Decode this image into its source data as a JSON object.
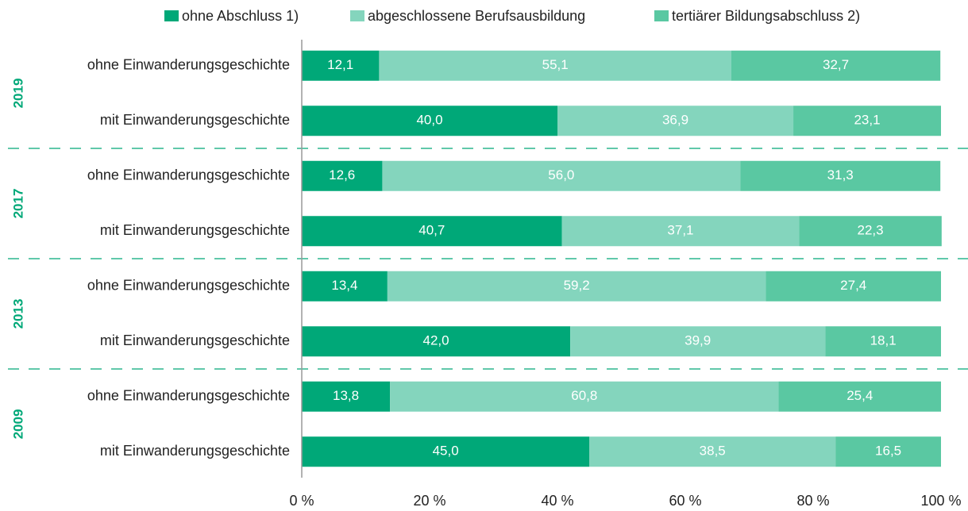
{
  "chart_data": {
    "type": "bar",
    "orientation": "horizontal",
    "stacked": true,
    "groups": [
      "2019",
      "2017",
      "2013",
      "2009"
    ],
    "categories": [
      "ohne Einwanderungsgeschichte",
      "mit Einwanderungsgeschichte",
      "ohne Einwanderungsgeschichte",
      "mit Einwanderungsgeschichte",
      "ohne Einwanderungsgeschichte",
      "mit Einwanderungsgeschichte",
      "ohne Einwanderungsgeschichte",
      "mit Einwanderungsgeschichte"
    ],
    "series": [
      {
        "name": "ohne Abschluss 1)",
        "color": "#00a878",
        "values": [
          12.1,
          40.0,
          12.6,
          40.7,
          13.4,
          42.0,
          13.8,
          45.0
        ],
        "value_labels": [
          "12,1",
          "40,0",
          "12,6",
          "40,7",
          "13,4",
          "42,0",
          "13,8",
          "45,0"
        ]
      },
      {
        "name": "abgeschlossene Berufsausbildung",
        "color": "#84d5bd",
        "values": [
          55.1,
          36.9,
          56.0,
          37.1,
          59.2,
          39.9,
          60.8,
          38.5
        ],
        "value_labels": [
          "55,1",
          "36,9",
          "56,0",
          "37,1",
          "59,2",
          "39,9",
          "60,8",
          "38,5"
        ]
      },
      {
        "name": "tertiärer Bildungsabschluss 2)",
        "color": "#5ac8a2",
        "values": [
          32.7,
          23.1,
          31.3,
          22.3,
          27.4,
          18.1,
          25.4,
          16.5
        ],
        "value_labels": [
          "32,7",
          "23,1",
          "31,3",
          "22,3",
          "27,4",
          "18,1",
          "25,4",
          "16,5"
        ]
      }
    ],
    "xlim": [
      0,
      100
    ],
    "xticks": [
      {
        "value": 0,
        "label": "0 %"
      },
      {
        "value": 20,
        "label": "20 %"
      },
      {
        "value": 40,
        "label": "40 %"
      },
      {
        "value": 60,
        "label": "60 %"
      },
      {
        "value": 80,
        "label": "80 %"
      },
      {
        "value": 100,
        "label": "100 %"
      }
    ],
    "legend": "top"
  }
}
